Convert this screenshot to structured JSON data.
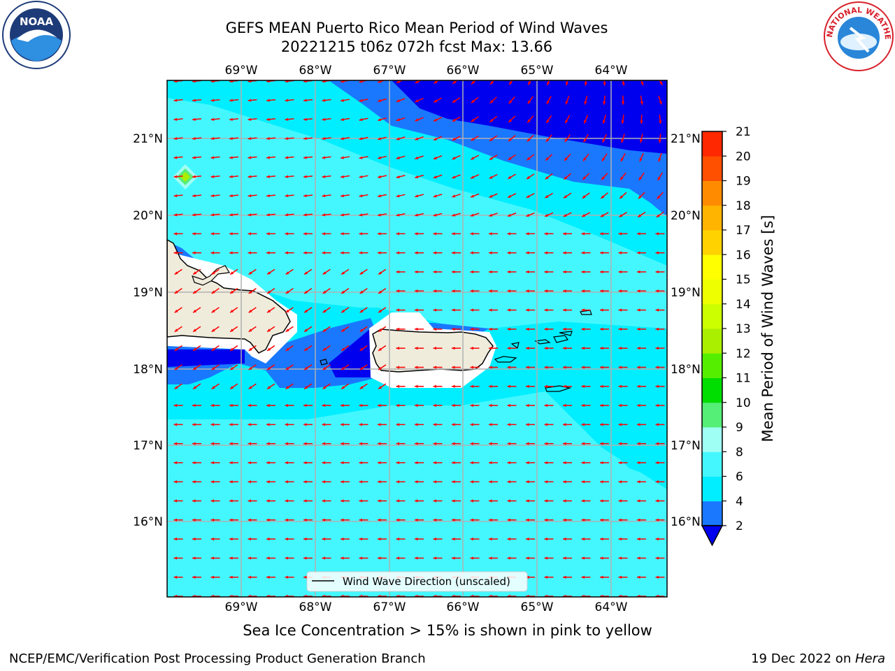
{
  "header": {
    "title_line1": "GEFS MEAN Puerto Rico Mean Period of Wind Waves",
    "title_line2": "20221215 t06z 072h fcst   Max: 13.66"
  },
  "logos": {
    "left": {
      "icon": "noaa-logo",
      "text": "NOAA"
    },
    "right": {
      "icon": "nws-logo",
      "text": "NATIONAL WEATHER SERVICE"
    }
  },
  "map": {
    "lon_ticks": [
      "69°W",
      "68°W",
      "67°W",
      "66°W",
      "65°W",
      "64°W"
    ],
    "lat_ticks": [
      "21°N",
      "20°N",
      "19°N",
      "18°N",
      "17°N",
      "16°N"
    ],
    "legend_label": "Wind Wave Direction (unscaled)",
    "arrow_color": "#ff0000",
    "land_color": "#efecdc"
  },
  "colorbar": {
    "label": "Mean Period of Wind Waves [s]",
    "ticks": [
      "2",
      "4",
      "6",
      "8",
      "9",
      "10",
      "11",
      "12",
      "13",
      "14",
      "15",
      "16",
      "17",
      "18",
      "19",
      "20",
      "21"
    ],
    "colors": [
      "#1a78ff",
      "#00eeff",
      "#44f7ff",
      "#a0fff5",
      "#55ee77",
      "#00dd00",
      "#55ee00",
      "#aaee00",
      "#ccff00",
      "#eeff00",
      "#ffff00",
      "#ffd200",
      "#ffb400",
      "#ff8c00",
      "#ff5000",
      "#ff2800",
      "#ff0000"
    ],
    "underflow_color": "#0000ee"
  },
  "subtitle": "Sea Ice Concentration > 15% is shown in pink to yellow",
  "footer": {
    "left": "NCEP/EMC/Verification Post Processing Product Generation Branch",
    "date": "19 Dec 2022 on ",
    "host": "Hera"
  }
}
